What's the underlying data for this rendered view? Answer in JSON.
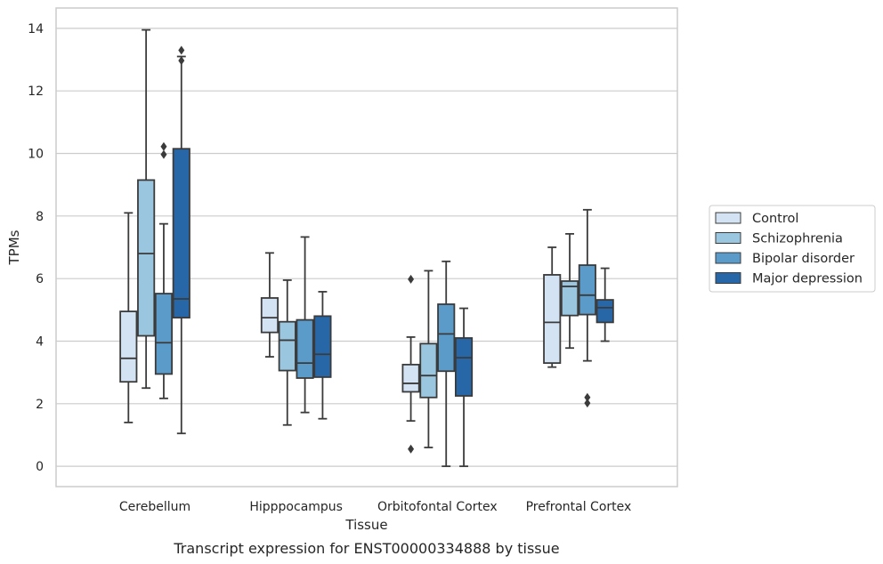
{
  "caption": "Transcript expression for ENST00000334888 by tissue",
  "chart_data": {
    "type": "boxplot",
    "xlabel": "Tissue",
    "ylabel": "TPMs",
    "ylim": [
      -0.65,
      14.65
    ],
    "yticks": [
      0,
      2,
      4,
      6,
      8,
      10,
      12,
      14
    ],
    "grid": "horizontal",
    "legend_position": "right",
    "categories": [
      "Cerebellum",
      "Hipppocampus",
      "Orbitofontal Cortex",
      "Prefrontal Cortex"
    ],
    "series": [
      {
        "name": "Control",
        "color": "#d3e3f3",
        "boxes": [
          {
            "whisker_low": 1.4,
            "q1": 2.7,
            "median": 3.45,
            "q3": 4.95,
            "whisker_high": 8.1,
            "outliers": []
          },
          {
            "whisker_low": 3.5,
            "q1": 4.28,
            "median": 4.75,
            "q3": 5.38,
            "whisker_high": 6.82,
            "outliers": []
          },
          {
            "whisker_low": 1.45,
            "q1": 2.38,
            "median": 2.65,
            "q3": 3.25,
            "whisker_high": 4.13,
            "outliers": [
              5.98,
              0.55
            ]
          },
          {
            "whisker_low": 3.17,
            "q1": 3.3,
            "median": 4.6,
            "q3": 6.12,
            "whisker_high": 7.0,
            "outliers": []
          }
        ]
      },
      {
        "name": "Schizophrenia",
        "color": "#9ac6df",
        "boxes": [
          {
            "whisker_low": 2.5,
            "q1": 4.17,
            "median": 6.8,
            "q3": 9.15,
            "whisker_high": 13.95,
            "outliers": []
          },
          {
            "whisker_low": 1.32,
            "q1": 3.06,
            "median": 4.03,
            "q3": 4.62,
            "whisker_high": 5.95,
            "outliers": []
          },
          {
            "whisker_low": 0.6,
            "q1": 2.2,
            "median": 2.9,
            "q3": 3.92,
            "whisker_high": 6.25,
            "outliers": []
          },
          {
            "whisker_low": 3.78,
            "q1": 4.82,
            "median": 5.75,
            "q3": 5.92,
            "whisker_high": 7.43,
            "outliers": []
          }
        ]
      },
      {
        "name": "Bipolar disorder",
        "color": "#5b9bc9",
        "boxes": [
          {
            "whisker_low": 2.17,
            "q1": 2.95,
            "median": 3.95,
            "q3": 5.52,
            "whisker_high": 7.75,
            "outliers": [
              10.22,
              9.97
            ]
          },
          {
            "whisker_low": 1.72,
            "q1": 2.82,
            "median": 3.3,
            "q3": 4.68,
            "whisker_high": 7.33,
            "outliers": []
          },
          {
            "whisker_low": 0.0,
            "q1": 3.04,
            "median": 4.23,
            "q3": 5.18,
            "whisker_high": 6.55,
            "outliers": []
          },
          {
            "whisker_low": 3.37,
            "q1": 4.85,
            "median": 5.47,
            "q3": 6.43,
            "whisker_high": 8.2,
            "outliers": [
              2.2,
              2.02
            ]
          }
        ]
      },
      {
        "name": "Major depression",
        "color": "#2767a7",
        "boxes": [
          {
            "whisker_low": 1.05,
            "q1": 4.75,
            "median": 5.35,
            "q3": 10.15,
            "whisker_high": 13.1,
            "outliers": [
              13.3,
              12.97
            ]
          },
          {
            "whisker_low": 1.52,
            "q1": 2.85,
            "median": 3.58,
            "q3": 4.8,
            "whisker_high": 5.58,
            "outliers": []
          },
          {
            "whisker_low": 0.0,
            "q1": 2.25,
            "median": 3.47,
            "q3": 4.1,
            "whisker_high": 5.05,
            "outliers": []
          },
          {
            "whisker_low": 4.0,
            "q1": 4.6,
            "median": 5.07,
            "q3": 5.32,
            "whisker_high": 6.33,
            "outliers": []
          }
        ]
      }
    ]
  }
}
